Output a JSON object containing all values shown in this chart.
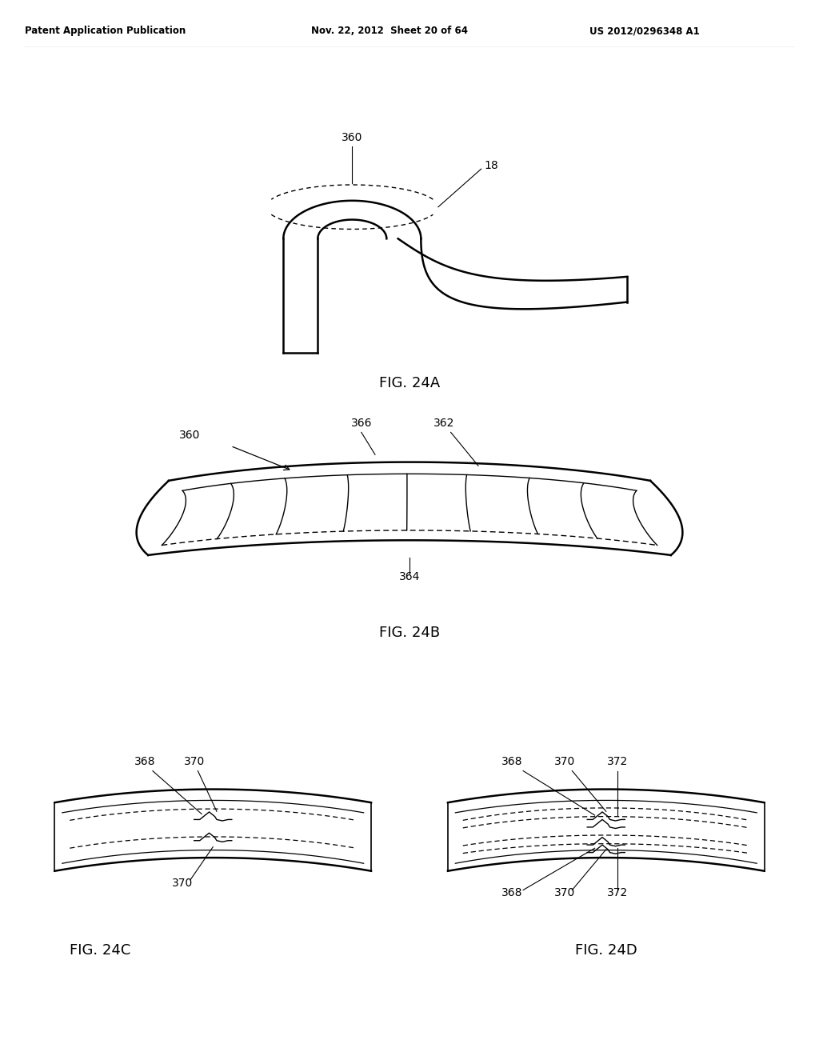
{
  "background_color": "#ffffff",
  "line_color": "#000000",
  "header_left": "Patent Application Publication",
  "header_center": "Nov. 22, 2012  Sheet 20 of 64",
  "header_right": "US 2012/0296348 A1",
  "fig_label_24a": "FIG. 24A",
  "fig_label_24b": "FIG. 24B",
  "fig_label_24c": "FIG. 24C",
  "fig_label_24d": "FIG. 24D"
}
